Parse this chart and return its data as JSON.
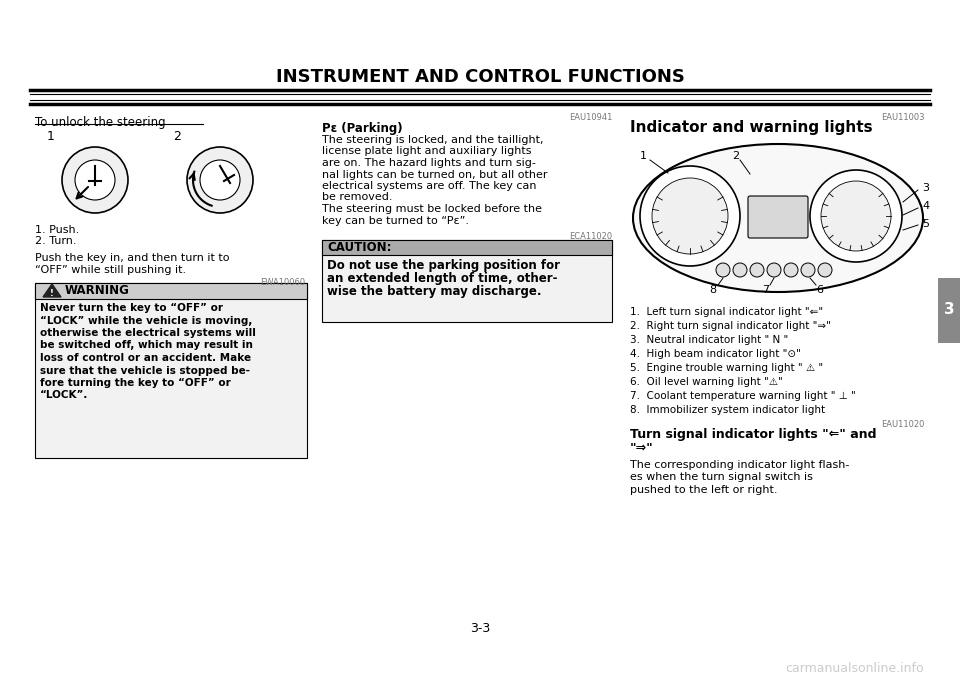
{
  "bg_color": "#ffffff",
  "title": "INSTRUMENT AND CONTROL FUNCTIONS",
  "page_number": "3-3",
  "chapter_num": "3",
  "left_col": {
    "section_title": "To unlock the steering",
    "caption1": "1. Push.",
    "caption2": "2. Turn.",
    "body_text": "Push the key in, and then turn it to\n“OFF” while still pushing it.",
    "warning_code": "EWA10060",
    "warning_title": "WARNING",
    "warning_text": "Never turn the key to “OFF” or\n“LOCK” while the vehicle is moving,\notherwise the electrical systems will\nbe switched off, which may result in\nloss of control or an accident. Make\nsure that the vehicle is stopped be-\nfore turning the key to “OFF” or\n“LOCK”."
  },
  "mid_col": {
    "code1": "EAU10941",
    "parking_title": "Pε (Parking)",
    "parking_text": "The steering is locked, and the taillight,\nlicense plate light and auxiliary lights\nare on. The hazard lights and turn sig-\nnal lights can be turned on, but all other\nelectrical systems are off. The key can\nbe removed.\nThe steering must be locked before the\nkey can be turned to “Pε”.",
    "caution_code": "ECA11020",
    "caution_title": "CAUTION:",
    "caution_text": "Do not use the parking position for\nan extended length of time, other-\nwise the battery may discharge."
  },
  "right_col": {
    "code": "EAU11003",
    "section_title": "Indicator and warning lights",
    "items": [
      "1.  Left turn signal indicator light \"⇐\"",
      "2.  Right turn signal indicator light \"⇒\"",
      "3.  Neutral indicator light \" N \"",
      "4.  High beam indicator light \"⊙\"",
      "5.  Engine trouble warning light \" ⚠ \"",
      "6.  Oil level warning light \"⚠\"",
      "7.  Coolant temperature warning light \" ⊥ \"",
      "8.  Immobilizer system indicator light"
    ],
    "turn_signal_code": "EAU11020",
    "turn_signal_title": "Turn signal indicator lights \"⇐\" and\n\"⇒\"",
    "turn_signal_text": "The corresponding indicator light flash-\nes when the turn signal switch is\npushed to the left or right."
  },
  "watermark": "carmanualsonline.info",
  "colors": {
    "text": "#000000",
    "gray": "#888888",
    "light_gray": "#dddddd",
    "warning_bg": "#d8d8d8",
    "caution_bg": "#aaaaaa",
    "white": "#ffffff"
  }
}
